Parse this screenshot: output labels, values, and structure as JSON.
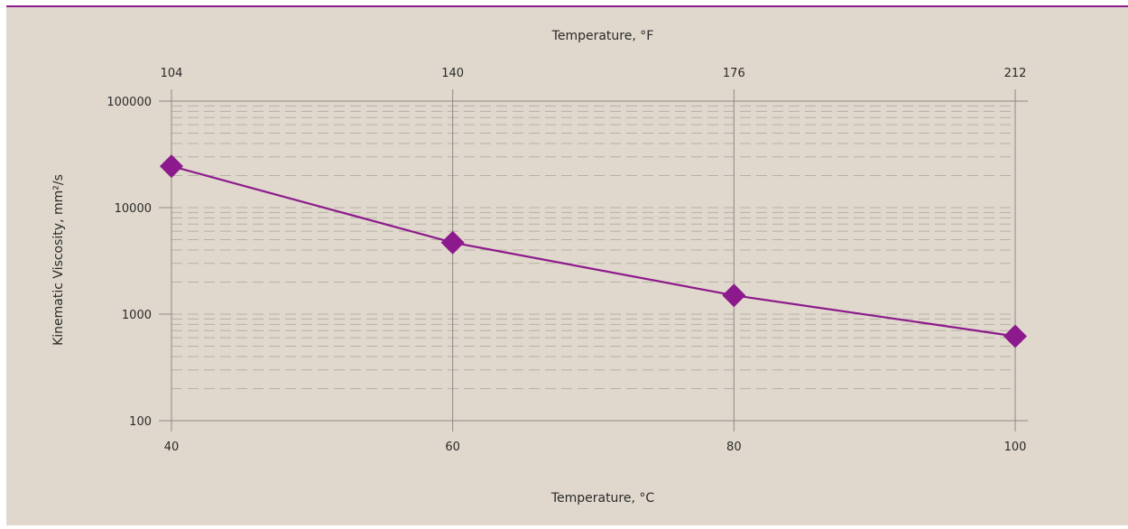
{
  "chart_data": {
    "type": "line",
    "title": "",
    "xlabel": "Temperature, °C",
    "x2label": "Temperature, °F",
    "ylabel": "Kinematic Viscosity, mm²/s",
    "x_ticks": [
      "40",
      "60",
      "80",
      "100"
    ],
    "x2_ticks": [
      "104",
      "140",
      "176",
      "212"
    ],
    "y_ticks": [
      "100",
      "1000",
      "10000",
      "100000"
    ],
    "xlim": [
      40,
      100
    ],
    "ylim": [
      100,
      100000
    ],
    "yscale": "log",
    "grid": "dashed minor horizontal lines, solid vertical lines at major x ticks",
    "series": [
      {
        "x": [
          40,
          60,
          80,
          100
        ],
        "y": [
          24500,
          4700,
          1500,
          620
        ],
        "color": "#8c1a8c",
        "marker": "diamond"
      }
    ]
  },
  "colors": {
    "background": "#e0d8cc",
    "top_rule": "#8c1a8c",
    "grid": "#b7b0a6",
    "axis": "#8f8a82",
    "series": "#8c1a8c"
  }
}
